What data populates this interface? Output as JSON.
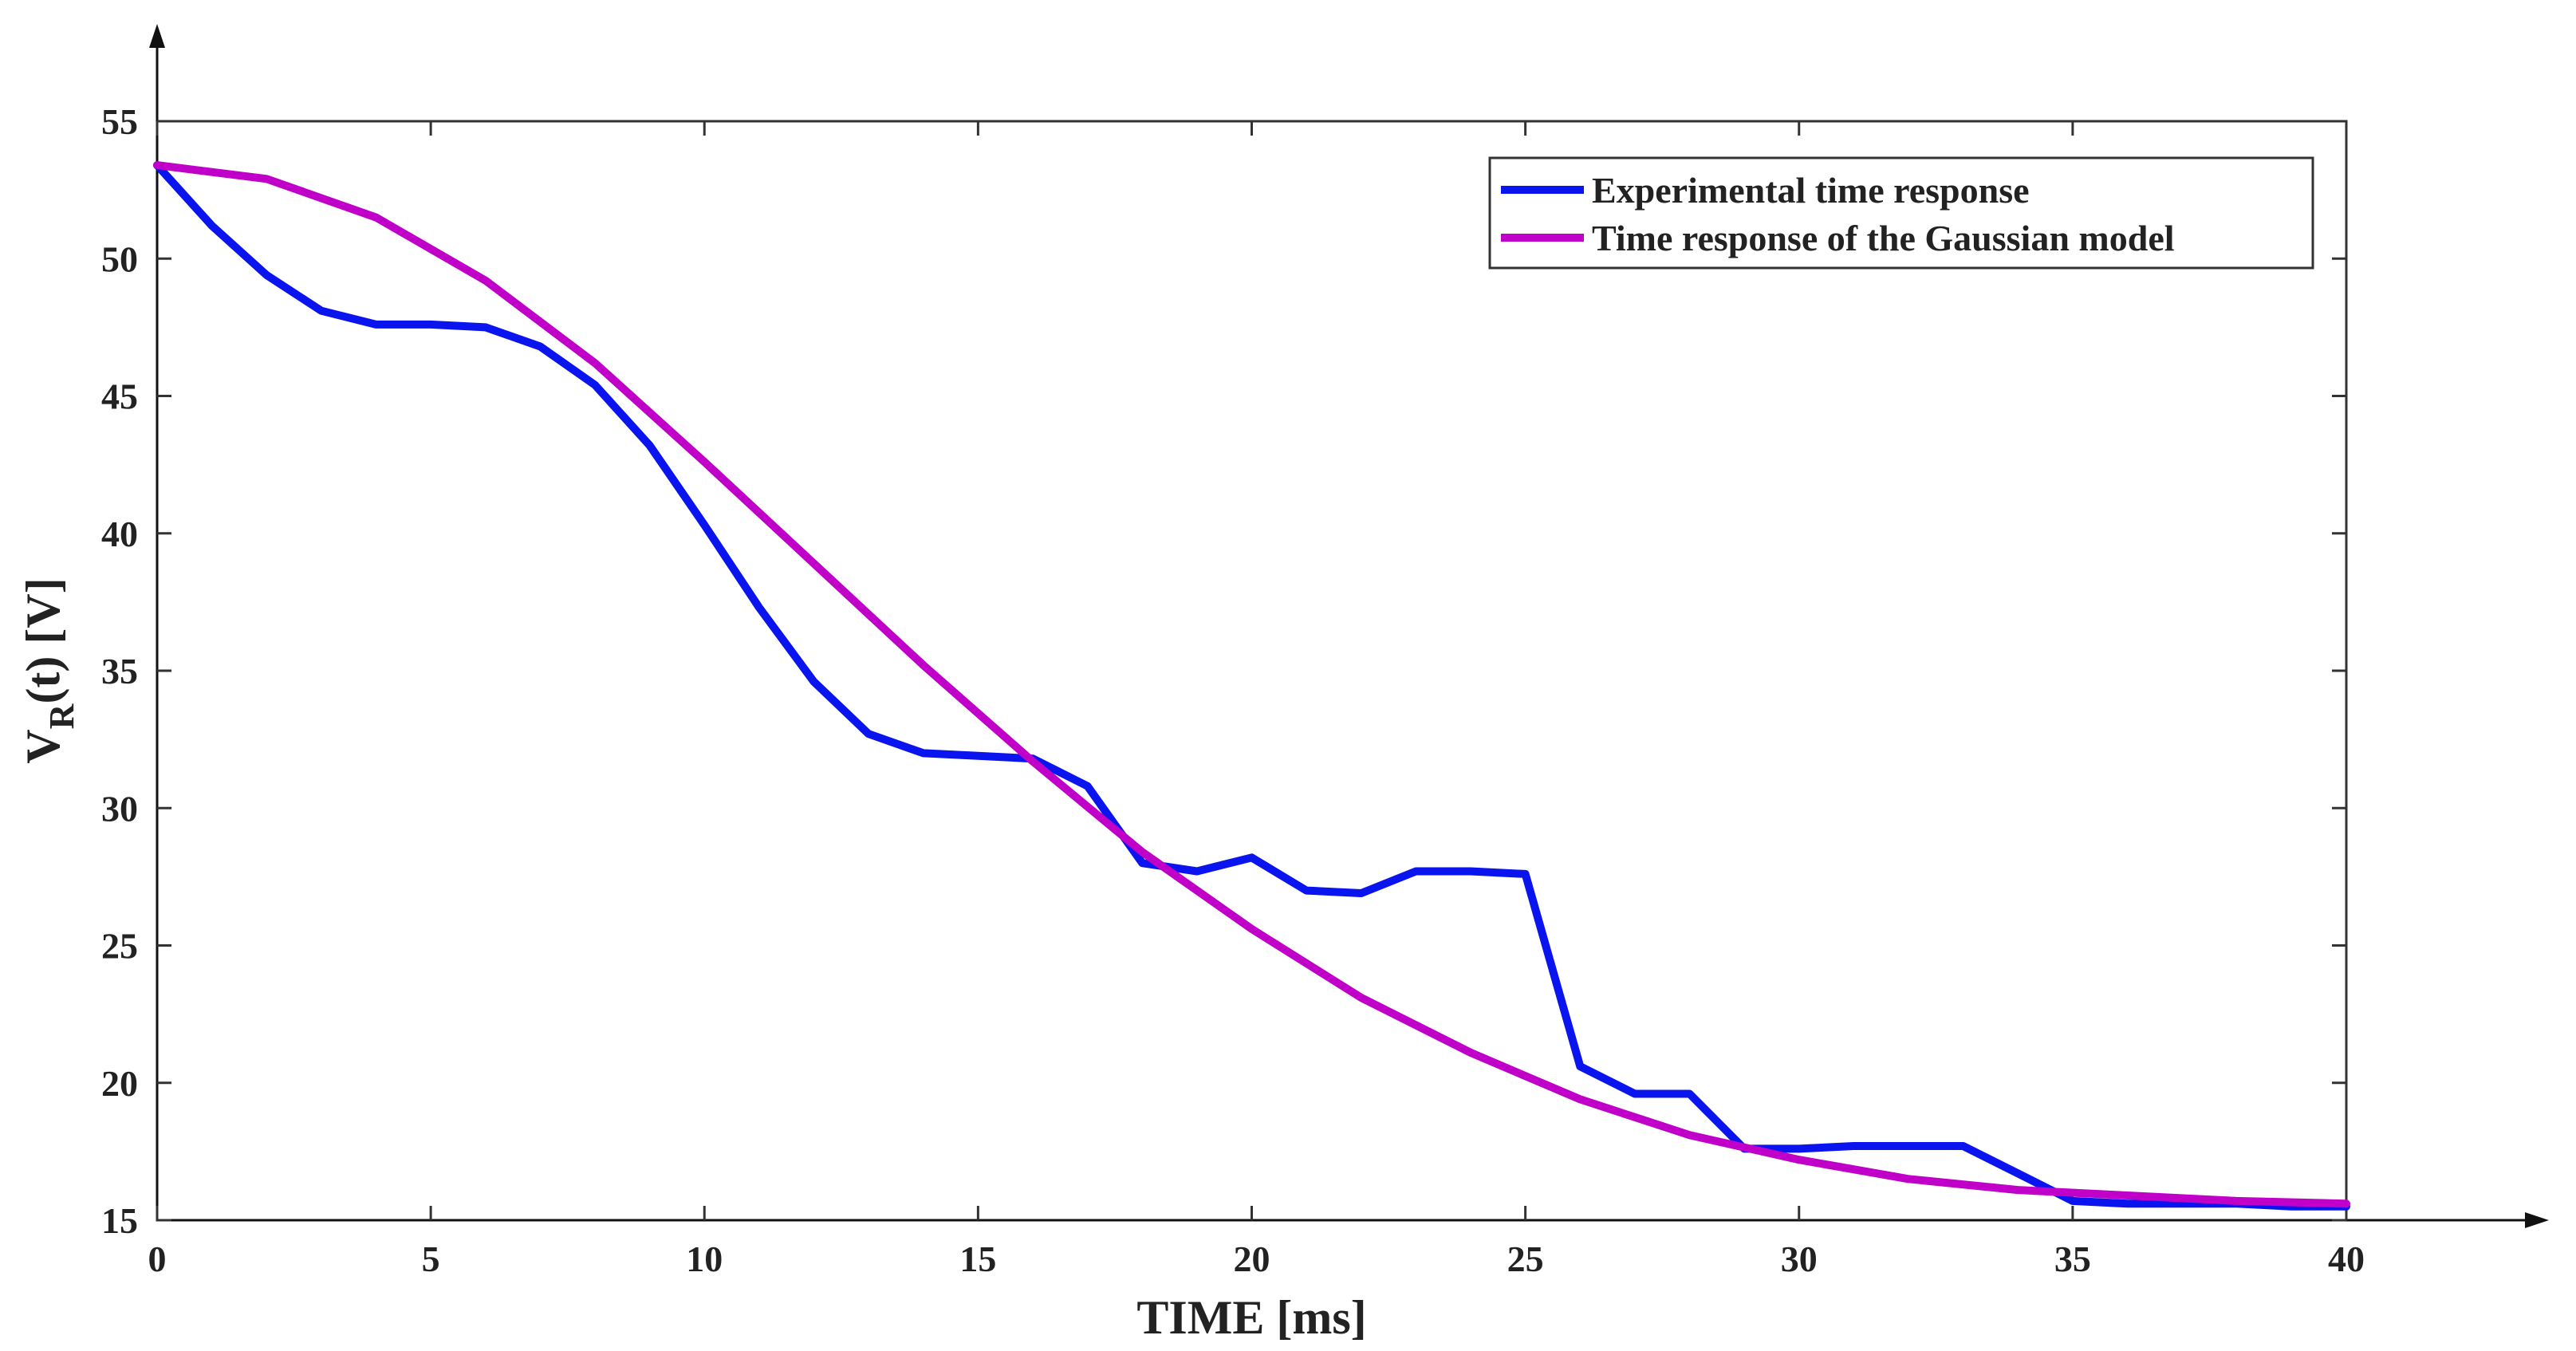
{
  "chart_data": {
    "type": "line",
    "title": "",
    "xlabel": "TIME [ms]",
    "ylabel": {
      "base": "V",
      "subscript": "R",
      "rest": "(t) [V]"
    },
    "xlim": [
      0,
      40
    ],
    "ylim": [
      15,
      55
    ],
    "xticks": [
      0,
      5,
      10,
      15,
      20,
      25,
      30,
      35,
      40
    ],
    "yticks": [
      15,
      20,
      25,
      30,
      35,
      40,
      45,
      50,
      55
    ],
    "grid": false,
    "legend_position": "top-right",
    "series": [
      {
        "name": "Experimental time response",
        "color": "#0a14ee",
        "x": [
          0,
          1,
          2,
          3,
          4,
          5,
          6,
          7,
          8,
          9,
          10,
          11,
          12,
          13,
          14,
          15,
          16,
          17,
          18,
          19,
          20,
          21,
          22,
          23,
          24,
          25,
          26,
          27,
          28,
          29,
          30,
          31,
          32,
          33,
          34,
          35,
          36,
          37,
          38,
          39,
          40
        ],
        "values": [
          53.4,
          51.2,
          49.4,
          48.1,
          47.6,
          47.6,
          47.5,
          46.8,
          45.4,
          43.2,
          40.3,
          37.3,
          34.6,
          32.7,
          32.0,
          31.9,
          31.8,
          30.8,
          28.0,
          27.7,
          28.2,
          27.0,
          26.9,
          27.7,
          27.7,
          27.6,
          20.6,
          19.6,
          19.6,
          17.6,
          17.6,
          17.7,
          17.7,
          17.7,
          16.7,
          15.7,
          15.6,
          15.6,
          15.6,
          15.5,
          15.5
        ]
      },
      {
        "name": "Time response of the Gaussian model",
        "color": "#c000c8",
        "x": [
          0,
          2,
          4,
          6,
          8,
          10,
          12,
          14,
          16,
          18,
          20,
          22,
          24,
          26,
          28,
          30,
          32,
          34,
          36,
          38,
          40
        ],
        "values": [
          53.4,
          52.9,
          51.5,
          49.2,
          46.2,
          42.6,
          38.9,
          35.2,
          31.7,
          28.4,
          25.6,
          23.1,
          21.1,
          19.4,
          18.1,
          17.2,
          16.5,
          16.1,
          15.9,
          15.7,
          15.6
        ]
      }
    ]
  }
}
